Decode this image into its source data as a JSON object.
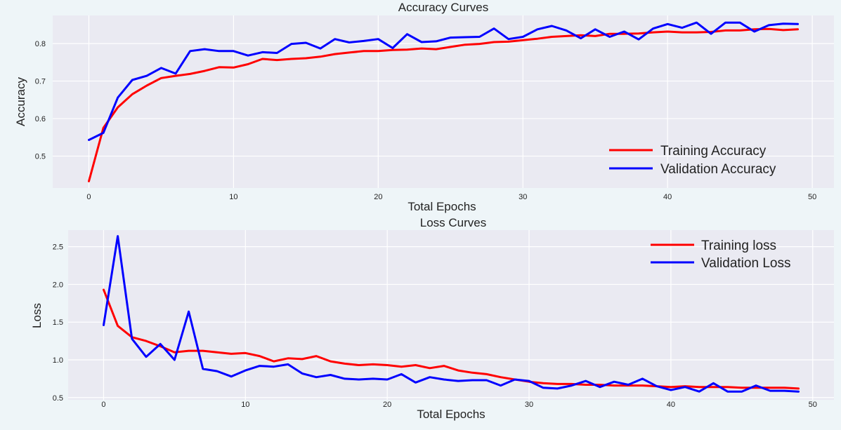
{
  "colors": {
    "panel_bg": "#eaeaf2",
    "grid": "#ffffff",
    "training": "#ff0000",
    "validation": "#0000ff",
    "text": "#222222",
    "page_bg": "#eef5f8"
  },
  "chart_data": [
    {
      "type": "line",
      "title": "Accuracy Curves",
      "xlabel": "Total Epochs",
      "ylabel": "Accuracy",
      "xlim": [
        -2.5,
        51.5
      ],
      "ylim": [
        0.415,
        0.875
      ],
      "xticks": [
        0,
        10,
        20,
        30,
        40,
        50
      ],
      "yticks": [
        0.5,
        0.6,
        0.7,
        0.8
      ],
      "xtick_labels": [
        "0",
        "10",
        "20",
        "30",
        "40",
        "50"
      ],
      "ytick_labels": [
        "0.5",
        "0.6",
        "0.7",
        "0.8"
      ],
      "grid": true,
      "legend_position": "lower-right",
      "x": [
        0,
        1,
        2,
        3,
        4,
        5,
        6,
        7,
        8,
        9,
        10,
        11,
        12,
        13,
        14,
        15,
        16,
        17,
        18,
        19,
        20,
        21,
        22,
        23,
        24,
        25,
        26,
        27,
        28,
        29,
        30,
        31,
        32,
        33,
        34,
        35,
        36,
        37,
        38,
        39,
        40,
        41,
        42,
        43,
        44,
        45,
        46,
        47,
        48,
        49
      ],
      "series": [
        {
          "name": "Training Accuracy",
          "color": "#ff0000",
          "values": [
            0.433,
            0.575,
            0.63,
            0.665,
            0.688,
            0.708,
            0.714,
            0.719,
            0.727,
            0.737,
            0.736,
            0.745,
            0.759,
            0.756,
            0.759,
            0.761,
            0.765,
            0.772,
            0.776,
            0.78,
            0.78,
            0.783,
            0.784,
            0.787,
            0.785,
            0.791,
            0.797,
            0.799,
            0.804,
            0.805,
            0.809,
            0.813,
            0.818,
            0.82,
            0.822,
            0.82,
            0.826,
            0.826,
            0.827,
            0.83,
            0.832,
            0.83,
            0.83,
            0.831,
            0.835,
            0.835,
            0.838,
            0.839,
            0.836,
            0.838
          ]
        },
        {
          "name": "Validation Accuracy",
          "color": "#0000ff",
          "values": [
            0.543,
            0.562,
            0.656,
            0.703,
            0.714,
            0.735,
            0.72,
            0.78,
            0.785,
            0.78,
            0.78,
            0.768,
            0.777,
            0.775,
            0.799,
            0.802,
            0.787,
            0.812,
            0.803,
            0.807,
            0.812,
            0.788,
            0.825,
            0.804,
            0.806,
            0.816,
            0.817,
            0.818,
            0.84,
            0.812,
            0.818,
            0.838,
            0.847,
            0.835,
            0.814,
            0.838,
            0.818,
            0.832,
            0.811,
            0.84,
            0.852,
            0.842,
            0.856,
            0.826,
            0.856,
            0.856,
            0.832,
            0.849,
            0.853,
            0.852
          ]
        }
      ]
    },
    {
      "type": "line",
      "title": "Loss Curves",
      "xlabel": "Total Epochs",
      "ylabel": "Loss",
      "xlim": [
        -2.5,
        51.5
      ],
      "ylim": [
        0.47,
        2.72
      ],
      "xticks": [
        0,
        10,
        20,
        30,
        40,
        50
      ],
      "yticks": [
        0.5,
        1.0,
        1.5,
        2.0,
        2.5
      ],
      "xtick_labels": [
        "0",
        "10",
        "20",
        "30",
        "40",
        "50"
      ],
      "ytick_labels": [
        "0.5",
        "1.0",
        "1.5",
        "2.0",
        "2.5"
      ],
      "grid": true,
      "legend_position": "upper-right",
      "x": [
        0,
        1,
        2,
        3,
        4,
        5,
        6,
        7,
        8,
        9,
        10,
        11,
        12,
        13,
        14,
        15,
        16,
        17,
        18,
        19,
        20,
        21,
        22,
        23,
        24,
        25,
        26,
        27,
        28,
        29,
        30,
        31,
        32,
        33,
        34,
        35,
        36,
        37,
        38,
        39,
        40,
        41,
        42,
        43,
        44,
        45,
        46,
        47,
        48,
        49
      ],
      "series": [
        {
          "name": "Training loss",
          "color": "#ff0000",
          "values": [
            1.93,
            1.45,
            1.3,
            1.25,
            1.18,
            1.1,
            1.12,
            1.12,
            1.1,
            1.08,
            1.09,
            1.05,
            0.98,
            1.02,
            1.01,
            1.05,
            0.98,
            0.95,
            0.93,
            0.94,
            0.93,
            0.91,
            0.93,
            0.89,
            0.92,
            0.86,
            0.83,
            0.81,
            0.77,
            0.74,
            0.71,
            0.69,
            0.68,
            0.68,
            0.67,
            0.67,
            0.66,
            0.66,
            0.66,
            0.65,
            0.64,
            0.65,
            0.64,
            0.64,
            0.64,
            0.63,
            0.63,
            0.63,
            0.63,
            0.62
          ]
        },
        {
          "name": "Validation Loss",
          "color": "#0000ff",
          "values": [
            1.46,
            2.64,
            1.28,
            1.04,
            1.21,
            1.0,
            1.64,
            0.88,
            0.85,
            0.78,
            0.86,
            0.92,
            0.91,
            0.94,
            0.82,
            0.77,
            0.8,
            0.75,
            0.74,
            0.75,
            0.74,
            0.81,
            0.7,
            0.77,
            0.74,
            0.72,
            0.73,
            0.73,
            0.66,
            0.74,
            0.72,
            0.63,
            0.62,
            0.66,
            0.72,
            0.64,
            0.71,
            0.67,
            0.75,
            0.65,
            0.6,
            0.64,
            0.58,
            0.69,
            0.58,
            0.58,
            0.66,
            0.59,
            0.59,
            0.58
          ]
        }
      ]
    }
  ]
}
